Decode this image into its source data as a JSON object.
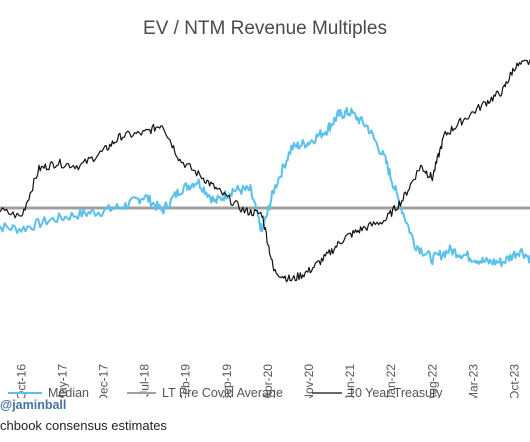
{
  "chart_data": {
    "type": "line",
    "title": "EV / NTM Revenue Multiples",
    "xlabel": "",
    "ylabel": "",
    "x_ticks": [
      "Oct-16",
      "May-17",
      "Dec-17",
      "Jul-18",
      "Feb-19",
      "Sep-19",
      "Apr-20",
      "Nov-20",
      "Jun-21",
      "Jan-22",
      "Aug-22",
      "Mar-23",
      "Oct-23"
    ],
    "x_range": [
      "2016-05",
      "2024-02"
    ],
    "y_range": [
      0,
      10
    ],
    "legend_placement": "bottom",
    "series": [
      {
        "name": "Median",
        "color": "#5bc0eb",
        "x": [
          "2016-05",
          "2016-10",
          "2017-03",
          "2017-08",
          "2017-12",
          "2018-04",
          "2018-07",
          "2018-10",
          "2019-01",
          "2019-04",
          "2019-07",
          "2019-10",
          "2020-01",
          "2020-03",
          "2020-05",
          "2020-08",
          "2020-11",
          "2021-02",
          "2021-04",
          "2021-06",
          "2021-09",
          "2021-12",
          "2022-02",
          "2022-05",
          "2022-08",
          "2022-11",
          "2023-02",
          "2023-05",
          "2023-08",
          "2023-11",
          "2024-02"
        ],
        "values": [
          4.4,
          4.3,
          4.6,
          4.8,
          4.9,
          5.1,
          5.4,
          4.9,
          5.6,
          5.9,
          5.2,
          5.6,
          5.6,
          4.2,
          5.6,
          7.0,
          7.2,
          7.6,
          8.1,
          8.2,
          7.7,
          6.6,
          5.4,
          3.8,
          3.3,
          3.6,
          3.4,
          3.2,
          3.2,
          3.6,
          3.1
        ]
      },
      {
        "name": "LT Pre Covid Average",
        "color": "#a0a0a0",
        "x": [
          "2016-05",
          "2024-02"
        ],
        "values": [
          5.0,
          5.0
        ]
      },
      {
        "name": "10 Year Treasury",
        "color": "#111111",
        "x": [
          "2016-05",
          "2016-10",
          "2017-01",
          "2017-04",
          "2017-08",
          "2017-12",
          "2018-03",
          "2018-07",
          "2018-10",
          "2019-01",
          "2019-05",
          "2019-08",
          "2019-12",
          "2020-03",
          "2020-05",
          "2020-08",
          "2020-11",
          "2021-02",
          "2021-05",
          "2021-08",
          "2021-12",
          "2022-03",
          "2022-06",
          "2022-08",
          "2022-10",
          "2023-01",
          "2023-05",
          "2023-08",
          "2023-10",
          "2024-01",
          "2024-02"
        ],
        "values": [
          5.0,
          4.7,
          6.3,
          6.5,
          6.4,
          6.9,
          7.4,
          7.5,
          7.8,
          6.6,
          6.0,
          5.5,
          4.9,
          4.8,
          2.9,
          2.6,
          2.9,
          3.4,
          4.0,
          4.3,
          4.6,
          5.3,
          6.4,
          6.0,
          7.4,
          7.9,
          8.5,
          8.9,
          9.7,
          9.9,
          9.3
        ]
      }
    ]
  },
  "footer": {
    "handle": "@jaminball",
    "note": "chbook consensus estimates"
  }
}
